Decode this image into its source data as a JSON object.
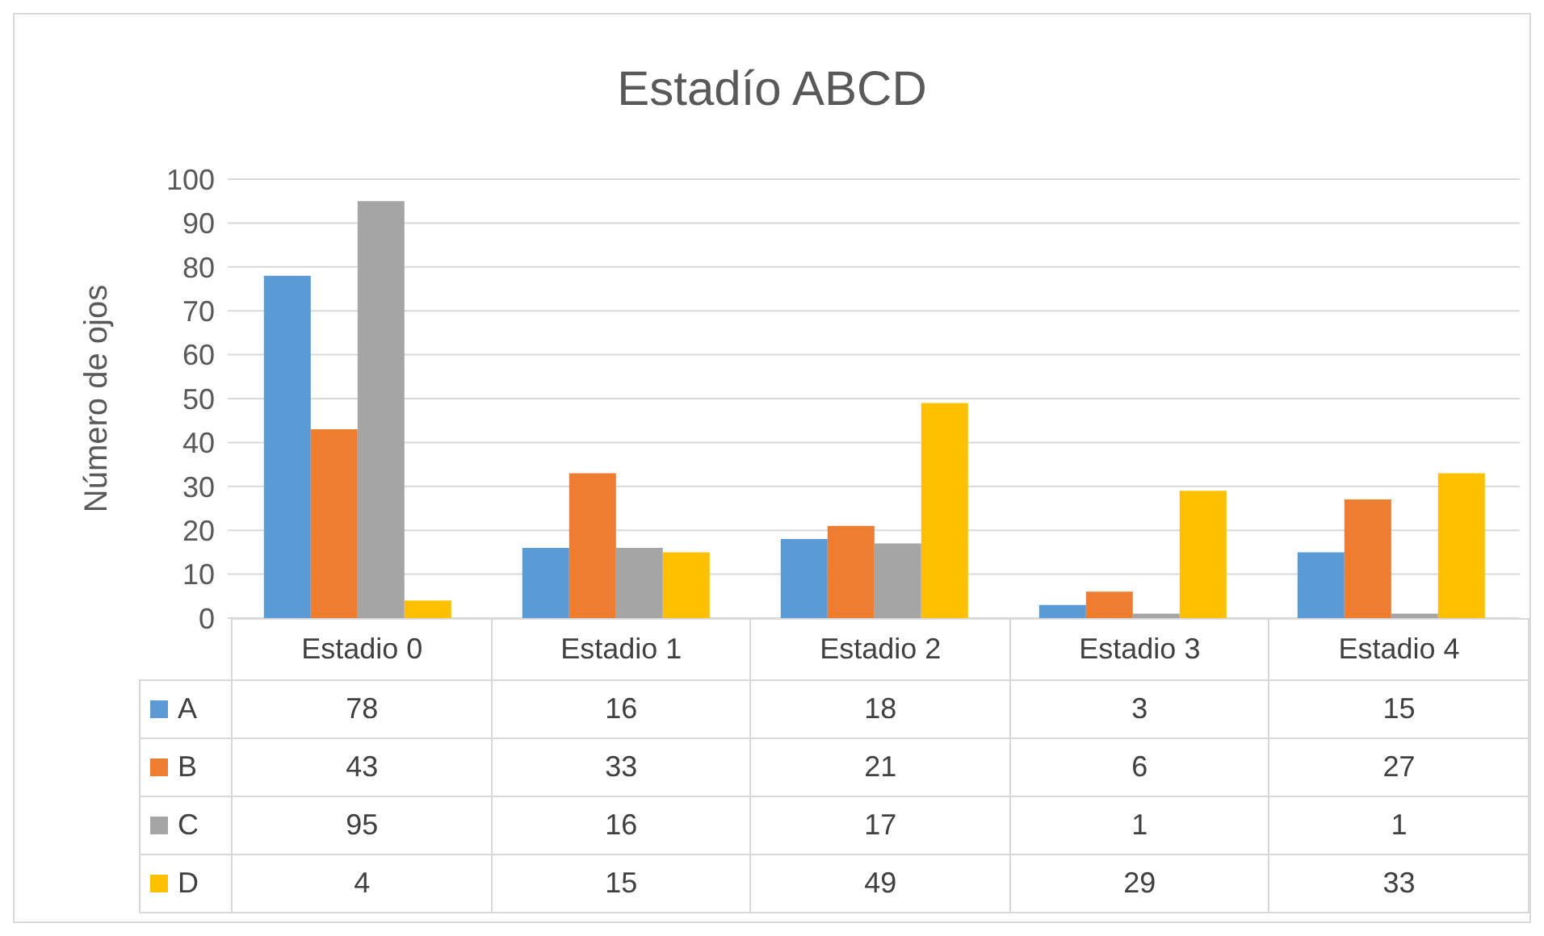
{
  "chart_data": {
    "type": "bar",
    "title": "Estadío ABCD",
    "ylabel": "Número de ojos",
    "categories": [
      "Estadio 0",
      "Estadio 1",
      "Estadio 2",
      "Estadio 3",
      "Estadio 4"
    ],
    "series": [
      {
        "name": "A",
        "color": "#5b9bd5",
        "values": [
          78,
          16,
          18,
          3,
          15
        ]
      },
      {
        "name": "B",
        "color": "#ed7d31",
        "values": [
          43,
          33,
          21,
          6,
          27
        ]
      },
      {
        "name": "C",
        "color": "#a5a5a5",
        "values": [
          95,
          16,
          17,
          1,
          1
        ]
      },
      {
        "name": "D",
        "color": "#ffc000",
        "values": [
          4,
          15,
          49,
          29,
          33
        ]
      }
    ],
    "ylim": [
      0,
      100
    ],
    "yticks": [
      0,
      10,
      20,
      30,
      40,
      50,
      60,
      70,
      80,
      90,
      100
    ],
    "grid": "y",
    "legend": "bottom",
    "data_labels": true
  }
}
